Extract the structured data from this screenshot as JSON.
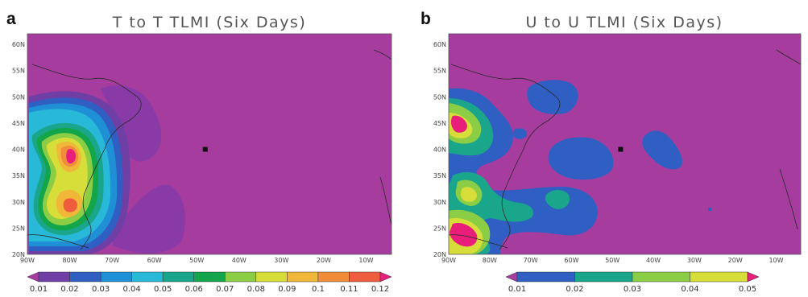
{
  "chart_data": [
    {
      "type": "heatmap",
      "panel_label": "a",
      "title": "T to T TLMI (Six Days)",
      "xlabel": "",
      "ylabel": "",
      "x_ticks": [
        "90W",
        "80W",
        "70W",
        "60W",
        "50W",
        "40W",
        "30W",
        "20W",
        "10W"
      ],
      "y_ticks": [
        "20N",
        "25N",
        "30N",
        "35N",
        "40N",
        "45N",
        "50N",
        "55N",
        "60N"
      ],
      "xlim": [
        -90,
        -4
      ],
      "ylim": [
        20,
        62
      ],
      "colorbar": {
        "levels": [
          "0.01",
          "0.02",
          "0.03",
          "0.04",
          "0.05",
          "0.06",
          "0.07",
          "0.08",
          "0.09",
          "0.1",
          "0.11",
          "0.12"
        ],
        "colors": [
          "#a63c9e",
          "#6f3fa6",
          "#2f5fc3",
          "#1f8fd6",
          "#28b8d8",
          "#1aa68a",
          "#12a54a",
          "#8ccd46",
          "#d7dd39",
          "#f0b739",
          "#f08c3a",
          "#ef5c3e",
          "#e81e7a"
        ],
        "extend": "both"
      },
      "marker": {
        "lon": -48,
        "lat": 40
      },
      "background_color": "#a63c9e"
    },
    {
      "type": "heatmap",
      "panel_label": "b",
      "title": "U to U TLMI (Six Days)",
      "xlabel": "",
      "ylabel": "",
      "x_ticks": [
        "90W",
        "80W",
        "70W",
        "60W",
        "50W",
        "40W",
        "30W",
        "20W",
        "10W"
      ],
      "y_ticks": [
        "20N",
        "25N",
        "30N",
        "35N",
        "40N",
        "45N",
        "50N",
        "55N",
        "60N"
      ],
      "xlim": [
        -90,
        -4
      ],
      "ylim": [
        20,
        62
      ],
      "colorbar": {
        "levels": [
          "0.01",
          "0.02",
          "0.03",
          "0.04",
          "0.05"
        ],
        "colors": [
          "#a63c9e",
          "#2f5fc3",
          "#1aa68a",
          "#8ccd46",
          "#d7dd39",
          "#e81e7a"
        ],
        "extend": "both"
      },
      "marker": {
        "lon": -48,
        "lat": 40
      },
      "background_color": "#a63c9e"
    }
  ]
}
